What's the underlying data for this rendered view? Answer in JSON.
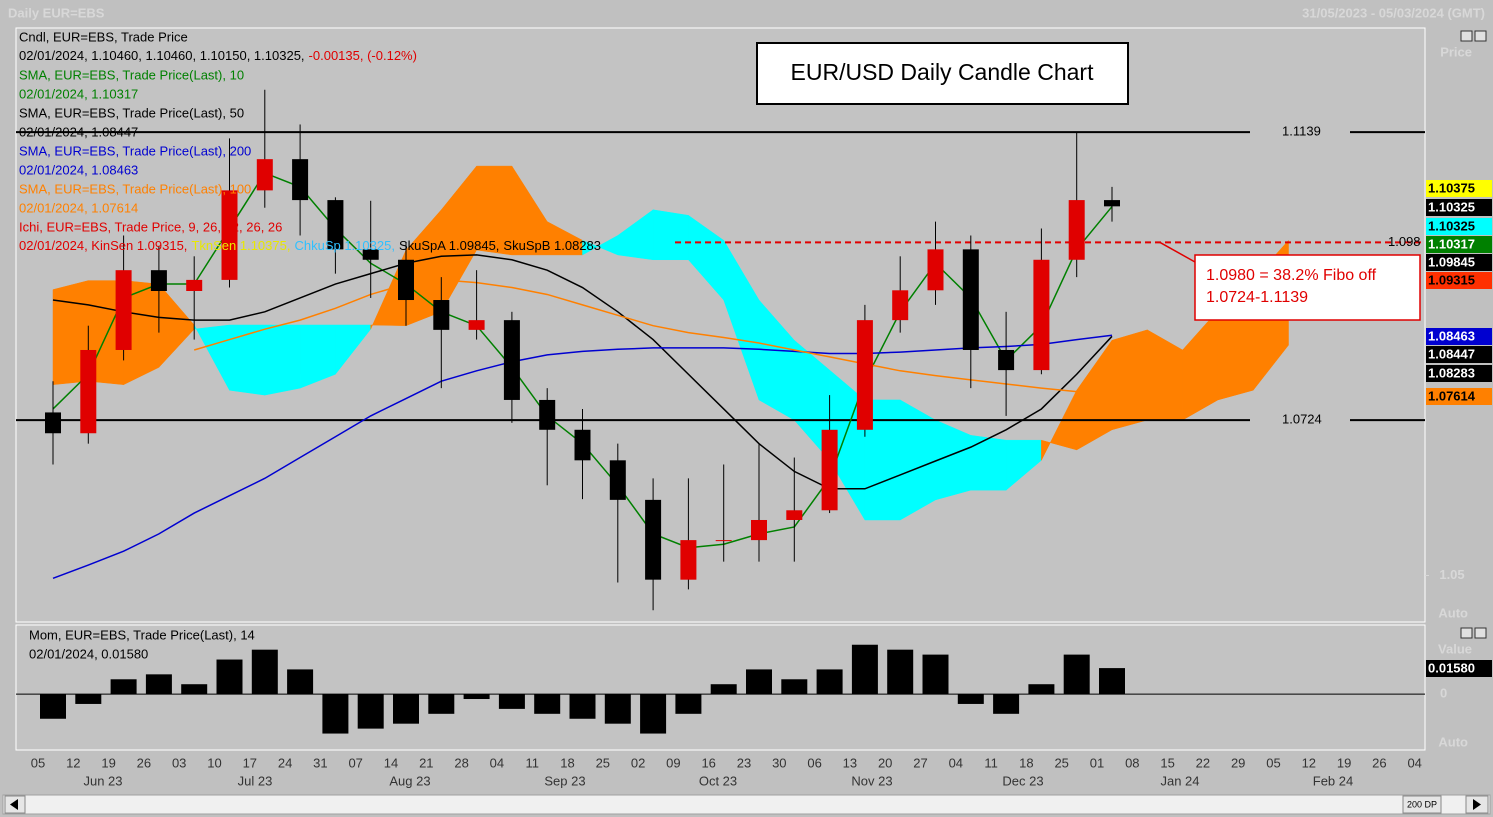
{
  "header": {
    "left": "Daily EUR=EBS",
    "right": "31/05/2023 - 05/03/2024 (GMT)"
  },
  "panel_labels": {
    "price": "Price",
    "price_auto": "Auto",
    "value": "Value",
    "value_auto": "Auto",
    "zero": "0"
  },
  "button": "200 DP",
  "chart_data": [
    {
      "type": "candlestick",
      "title": "EUR/USD Daily Candle Chart",
      "categories": [
        "05",
        "12",
        "19",
        "26",
        "03",
        "10",
        "17",
        "24",
        "31",
        "07",
        "14",
        "21",
        "28",
        "04",
        "11",
        "18",
        "25",
        "02",
        "09",
        "16",
        "23",
        "30",
        "06",
        "13",
        "20",
        "27",
        "04",
        "11",
        "18",
        "25",
        "01",
        "08",
        "15",
        "22",
        "29",
        "05",
        "12",
        "19",
        "26",
        "04"
      ],
      "months": [
        "Jun 23",
        "Jul 23",
        "Aug 23",
        "Sep 23",
        "Oct 23",
        "Nov 23",
        "Dec 23",
        "Jan 24",
        "Feb 24"
      ],
      "ylim": [
        1.0433,
        1.1289
      ],
      "yticks": [
        1.05
      ],
      "up_color": "#e00000",
      "down_color": "#000000",
      "candle_name": "Cndl, EUR=EBS, Trade Price",
      "candle_label": [
        "02/01/2024, 1.10460, 1.10460, 1.10150, 1.10325,",
        "-0.00135, (-0.12%)"
      ],
      "open": [
        1.0735,
        1.0705,
        1.0825,
        1.094,
        1.091,
        1.0926,
        1.1055,
        1.11,
        1.1041,
        1.097,
        1.0955,
        1.0897,
        1.0854,
        1.0868,
        1.0753,
        1.071,
        1.0666,
        1.0609,
        1.0494,
        1.0551,
        1.0551,
        1.058,
        1.0594,
        1.071,
        1.0868,
        1.0911,
        1.097,
        1.0825,
        1.0796,
        1.0955,
        1.1041,
        null,
        null,
        null,
        null,
        null,
        null,
        null,
        null,
        null
      ],
      "high": [
        1.078,
        1.086,
        1.099,
        1.0975,
        1.096,
        1.113,
        1.12,
        1.115,
        1.1045,
        1.104,
        1.098,
        1.093,
        1.094,
        1.088,
        1.077,
        1.074,
        1.069,
        1.064,
        1.064,
        1.066,
        1.069,
        1.067,
        1.076,
        1.089,
        1.096,
        1.101,
        1.099,
        1.088,
        1.1,
        1.1139,
        1.106,
        null,
        null,
        null,
        null,
        null,
        null,
        null,
        null,
        null
      ],
      "low": [
        1.066,
        1.069,
        1.081,
        1.085,
        1.084,
        1.0915,
        1.103,
        1.099,
        1.0935,
        1.09,
        1.086,
        1.077,
        1.084,
        1.072,
        1.063,
        1.061,
        1.049,
        1.045,
        1.048,
        1.052,
        1.052,
        1.052,
        1.059,
        1.07,
        1.085,
        1.089,
        1.077,
        1.073,
        1.079,
        1.093,
        1.101,
        null,
        null,
        null,
        null,
        null,
        null,
        null,
        null,
        null
      ],
      "close": [
        1.0705,
        1.0825,
        1.094,
        1.091,
        1.0926,
        1.1055,
        1.11,
        1.1041,
        1.097,
        1.0955,
        1.0897,
        1.0854,
        1.0868,
        1.0753,
        1.071,
        1.0666,
        1.0609,
        1.0494,
        1.0551,
        1.0551,
        1.058,
        1.0594,
        1.071,
        1.0868,
        1.0911,
        1.097,
        1.0825,
        1.0796,
        1.0955,
        1.1041,
        1.1032,
        null,
        null,
        null,
        null,
        null,
        null,
        null,
        null,
        null
      ],
      "series": [
        {
          "name": "SMA, EUR=EBS, Trade Price(Last),  10",
          "label": "02/01/2024, 1.10317",
          "color": "#008000",
          "values": [
            1.074,
            1.079,
            1.09,
            1.092,
            1.092,
            1.1,
            1.108,
            1.106,
            1.1,
            1.095,
            1.092,
            1.088,
            1.086,
            1.08,
            1.073,
            1.069,
            1.063,
            1.056,
            1.054,
            1.0545,
            1.056,
            1.057,
            1.064,
            1.078,
            1.088,
            1.095,
            1.09,
            1.081,
            1.086,
            1.097,
            1.10317,
            null,
            null,
            null,
            null,
            null,
            null,
            null,
            null,
            null
          ]
        },
        {
          "name": "SMA, EUR=EBS, Trade Price(Last),  50",
          "label": "02/01/2024, 1.08447",
          "color": "#000000",
          "values": [
            1.0897,
            1.089,
            1.088,
            1.0872,
            1.0868,
            1.0868,
            1.088,
            1.09,
            1.092,
            1.0935,
            1.095,
            1.096,
            1.0962,
            1.0955,
            1.094,
            1.0915,
            1.088,
            1.084,
            1.079,
            1.074,
            1.069,
            1.065,
            1.0625,
            1.0625,
            1.0645,
            1.0665,
            1.0685,
            1.071,
            1.074,
            1.079,
            1.08447,
            null,
            null,
            null,
            null,
            null,
            null,
            null,
            null,
            null
          ]
        },
        {
          "name": "SMA, EUR=EBS, Trade Price(Last),  200",
          "label": "02/01/2024, 1.08463",
          "color": "#0000d0",
          "values": [
            1.0496,
            1.0515,
            1.0535,
            1.056,
            1.059,
            1.0615,
            1.064,
            1.067,
            1.07,
            1.073,
            1.0755,
            1.078,
            1.0795,
            1.0808,
            1.0818,
            1.0823,
            1.0826,
            1.0828,
            1.0828,
            1.0828,
            1.0826,
            1.0823,
            1.082,
            1.082,
            1.0822,
            1.0825,
            1.0828,
            1.083,
            1.0833,
            1.084,
            1.08463,
            null,
            null,
            null,
            null,
            null,
            null,
            null,
            null,
            null
          ]
        },
        {
          "name": "SMA, EUR=EBS, Trade Price(Last),  100",
          "label": "02/01/2024, 1.07614",
          "color": "#ff8000",
          "values": [
            null,
            null,
            null,
            null,
            1.0825,
            1.084,
            1.0855,
            1.0868,
            1.0885,
            1.0905,
            1.092,
            1.0926,
            1.0922,
            1.0915,
            1.0905,
            1.089,
            1.0875,
            1.086,
            1.085,
            1.0843,
            1.0835,
            1.0825,
            1.0815,
            1.0805,
            1.0795,
            1.0788,
            1.0782,
            1.0776,
            1.077,
            1.0765,
            1.07614,
            null,
            null,
            null,
            null,
            null,
            null,
            null,
            null,
            null
          ]
        }
      ],
      "cloud": {
        "name": "Ichi, EUR=EBS, Trade Price,  9,  26,  52,  26,  26",
        "name_color": "#e00000",
        "label_parts": [
          {
            "text": "02/01/2024, KinSen 1.09315,",
            "color": "#e00000"
          },
          {
            "text": "TknSen 1.10375,",
            "color": "#e8e800"
          },
          {
            "text": "ChkuSp 1.10325,",
            "color": "#30c0ff"
          },
          {
            "text": "SkuSpA 1.09845,",
            "color": "#000000"
          },
          {
            "text": "SkuSpB 1.08283",
            "color": "#000000"
          }
        ],
        "bull_color": "#00ffff",
        "bear_color": "#ff8000",
        "span_a": [
          1.0775,
          1.078,
          1.0775,
          1.08,
          1.0855,
          1.0861,
          1.0861,
          1.0861,
          1.0861,
          1.0861,
          1.086,
          1.088,
          1.0969,
          1.0962,
          1.0962,
          1.0962,
          1.099,
          1.1027,
          1.1019,
          1.0983,
          1.0897,
          1.0839,
          1.0796,
          1.0753,
          1.0753,
          1.0724,
          1.0702,
          1.0695,
          1.0695,
          1.0681,
          1.071,
          1.0724,
          1.0724,
          1.0753,
          1.0767,
          1.0832,
          null,
          null,
          null,
          null
        ],
        "span_b": [
          1.0912,
          1.0925,
          1.0925,
          1.092,
          1.0861,
          1.0767,
          1.076,
          1.077,
          1.079,
          1.0855,
          1.0969,
          1.1027,
          1.109,
          1.109,
          1.101,
          1.0983,
          1.0962,
          1.0955,
          1.0955,
          1.0897,
          1.0753,
          1.0724,
          1.0666,
          1.058,
          1.058,
          1.0609,
          1.0623,
          1.0623,
          1.0666,
          1.0767,
          1.0839,
          1.0854,
          1.0825,
          1.0882,
          1.0926,
          1.0983,
          null,
          null,
          null,
          null
        ]
      },
      "hlines": [
        1.1139,
        1.0724
      ],
      "hline_color": "#000000",
      "fibo_line": 1.098,
      "fibo_color": "#e00000",
      "annotation": [
        "1.0980 = 38.2% Fibo off",
        "1.0724-1.1139"
      ],
      "price_labels": [
        {
          "text": "1.10375",
          "bg": "#ffff00",
          "fg": "#000000"
        },
        {
          "text": "1.10325",
          "bg": "#000000",
          "fg": "#ffffff"
        },
        {
          "text": "1.10325",
          "bg": "#00ffff",
          "fg": "#000000"
        },
        {
          "text": "1.10317",
          "bg": "#008000",
          "fg": "#ffffff"
        },
        {
          "text": "1.09845",
          "bg": "#000000",
          "fg": "#ffffff"
        },
        {
          "text": "1.09315",
          "bg": "#ff3000",
          "fg": "#000000"
        },
        {
          "text": "1.08463",
          "bg": "#0000d0",
          "fg": "#ffffff"
        },
        {
          "text": "1.08447",
          "bg": "#000000",
          "fg": "#ffffff"
        },
        {
          "text": "1.08283",
          "bg": "#000000",
          "fg": "#ffffff"
        },
        {
          "text": "1.07614",
          "bg": "#ff8000",
          "fg": "#000000"
        }
      ]
    },
    {
      "type": "bar",
      "name": "Mom, EUR=EBS, Trade Price(Last),  14",
      "label": "02/01/2024, 0.01580",
      "color": "#000000",
      "ylim": [
        -0.034,
        0.042
      ],
      "last_label": "0.01580",
      "values": [
        -0.015,
        -0.006,
        0.009,
        0.012,
        0.006,
        0.021,
        0.027,
        0.015,
        -0.024,
        -0.021,
        -0.018,
        -0.012,
        -0.003,
        -0.009,
        -0.012,
        -0.015,
        -0.018,
        -0.024,
        -0.012,
        0.006,
        0.015,
        0.009,
        0.015,
        0.03,
        0.027,
        0.024,
        -0.006,
        -0.012,
        0.006,
        0.024,
        0.0158
      ]
    }
  ]
}
